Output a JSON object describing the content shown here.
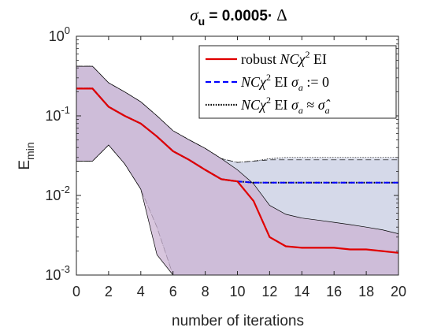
{
  "chart_data": {
    "type": "line",
    "title_parts": {
      "symbol": "σ",
      "subscript": "u",
      "rest": " = 0.0005·",
      "delta": "Δ"
    },
    "xlabel": "number of iterations",
    "ylabel": "E",
    "ylabel_sub": "min",
    "xlim": [
      0,
      20
    ],
    "ylim": [
      0.001,
      1
    ],
    "yscale": "log",
    "x_ticks": [
      0,
      2,
      4,
      6,
      8,
      10,
      12,
      14,
      16,
      18,
      20
    ],
    "y_ticks": [
      {
        "base": "10",
        "exp": "-3",
        "value": 0.001
      },
      {
        "base": "10",
        "exp": "-2",
        "value": 0.01
      },
      {
        "base": "10",
        "exp": "-1",
        "value": 0.1
      },
      {
        "base": "10",
        "exp": "0",
        "value": 1
      }
    ],
    "legend_position": "top-right",
    "series": [
      {
        "name": "robust NCχ² EI",
        "color": "#e00000",
        "style": "solid",
        "x": [
          0,
          1,
          2,
          3,
          4,
          5,
          6,
          7,
          8,
          9,
          10,
          11,
          12,
          13,
          14,
          15,
          16,
          17,
          18,
          19,
          20
        ],
        "y": [
          0.22,
          0.22,
          0.13,
          0.1,
          0.08,
          0.055,
          0.036,
          0.028,
          0.021,
          0.016,
          0.015,
          0.0085,
          0.003,
          0.0023,
          0.0022,
          0.0022,
          0.0022,
          0.0021,
          0.0021,
          0.002,
          0.0019
        ],
        "band_lower": [
          0.027,
          0.027,
          0.043,
          0.025,
          0.012,
          0.0018,
          0.001,
          0.001,
          0.001,
          0.001,
          0.001,
          0.001,
          0.001,
          0.001,
          0.001,
          0.001,
          0.001,
          0.001,
          0.001,
          0.001,
          0.001
        ],
        "band_upper": [
          0.42,
          0.42,
          0.26,
          0.2,
          0.15,
          0.1,
          0.065,
          0.05,
          0.039,
          0.029,
          0.021,
          0.014,
          0.0075,
          0.0058,
          0.0052,
          0.0049,
          0.0046,
          0.0043,
          0.004,
          0.0037,
          0.0033
        ],
        "band_color": "#cbb3d3"
      },
      {
        "name": "NCχ² EI σa := 0",
        "color": "#0000ff",
        "style": "dashed",
        "x": [
          0,
          1,
          2,
          3,
          4,
          5,
          6,
          7,
          8,
          9,
          10,
          11,
          12,
          13,
          14,
          15,
          16,
          17,
          18,
          19,
          20
        ],
        "y": [
          0.22,
          0.22,
          0.13,
          0.1,
          0.08,
          0.055,
          0.036,
          0.028,
          0.021,
          0.016,
          0.015,
          0.0145,
          0.0145,
          0.0145,
          0.0145,
          0.0145,
          0.0145,
          0.0145,
          0.0145,
          0.0145,
          0.0145
        ],
        "band_lower": [
          0.027,
          0.027,
          0.043,
          0.025,
          0.012,
          0.004,
          0.001,
          0.001,
          0.001,
          0.001,
          0.001,
          0.001,
          0.001,
          0.001,
          0.001,
          0.001,
          0.001,
          0.001,
          0.001,
          0.001,
          0.001
        ],
        "band_upper": [
          0.42,
          0.42,
          0.26,
          0.2,
          0.15,
          0.1,
          0.065,
          0.05,
          0.039,
          0.029,
          0.026,
          0.027,
          0.028,
          0.028,
          0.028,
          0.028,
          0.028,
          0.028,
          0.028,
          0.028,
          0.028
        ],
        "band_color": "#cdd1e5"
      },
      {
        "name": "NCχ² EI σa ≈ σ̂a",
        "color": "#000000",
        "style": "dotted",
        "x": [
          0,
          1,
          2,
          3,
          4,
          5,
          6,
          7,
          8,
          9,
          10,
          11,
          12,
          13,
          14,
          15,
          16,
          17,
          18,
          19,
          20
        ],
        "y": [
          0.22,
          0.22,
          0.13,
          0.1,
          0.08,
          0.055,
          0.036,
          0.028,
          0.021,
          0.016,
          0.015,
          0.0145,
          0.0145,
          0.0145,
          0.0145,
          0.0145,
          0.0145,
          0.0145,
          0.0145,
          0.0145,
          0.0145
        ],
        "band_lower": [
          0.027,
          0.027,
          0.043,
          0.025,
          0.012,
          0.004,
          0.001,
          0.001,
          0.001,
          0.001,
          0.001,
          0.001,
          0.001,
          0.001,
          0.001,
          0.001,
          0.001,
          0.001,
          0.001,
          0.001,
          0.001
        ],
        "band_upper": [
          0.42,
          0.42,
          0.26,
          0.2,
          0.15,
          0.1,
          0.065,
          0.05,
          0.039,
          0.029,
          0.026,
          0.027,
          0.029,
          0.03,
          0.03,
          0.03,
          0.03,
          0.03,
          0.03,
          0.03,
          0.03
        ],
        "band_color": "#cfd3e6"
      }
    ],
    "legend_entries": [
      {
        "prefix": "robust ",
        "math": "NCχ",
        "sup": "2",
        "suffix": " EI",
        "sigma": "",
        "sub": "",
        "rel": "",
        "hat": "",
        "color": "#e00000",
        "dash": ""
      },
      {
        "prefix": "",
        "math": "NCχ",
        "sup": "2",
        "suffix": " EI ",
        "sigma": "σ",
        "sub": "a",
        "rel": " := 0",
        "hat": "",
        "color": "#0000ff",
        "dash": "7,4"
      },
      {
        "prefix": "",
        "math": "NCχ",
        "sup": "2",
        "suffix": " EI ",
        "sigma": "σ",
        "sub": "a",
        "rel": " ≈ ",
        "hat": "σ̂",
        "color": "#000000",
        "dash": "1.6,1.6"
      }
    ]
  }
}
